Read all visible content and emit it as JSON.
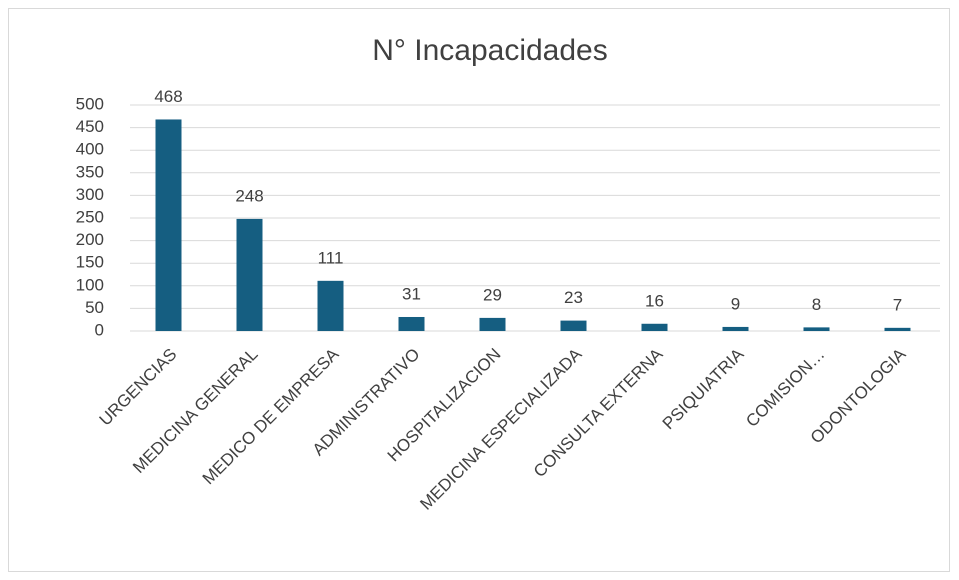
{
  "chart_data": {
    "type": "bar",
    "title": "N° Incapacidades",
    "categories": [
      "URGENCIAS",
      "MEDICINA GENERAL",
      "MEDICO DE EMPRESA",
      "ADMINISTRATIVO",
      "HOSPITALIZACION",
      "MEDICINA ESPECIALIZADA",
      "CONSULTA EXTERNA",
      "PSIQUIATRIA",
      "COMISION…",
      "ODONTOLOGIA"
    ],
    "values": [
      468,
      248,
      111,
      31,
      29,
      23,
      16,
      9,
      8,
      7
    ],
    "color": "#155e81",
    "ylim": [
      0,
      500
    ],
    "yticks": [
      0,
      50,
      100,
      150,
      200,
      250,
      300,
      350,
      400,
      450,
      500
    ],
    "grid": true
  }
}
